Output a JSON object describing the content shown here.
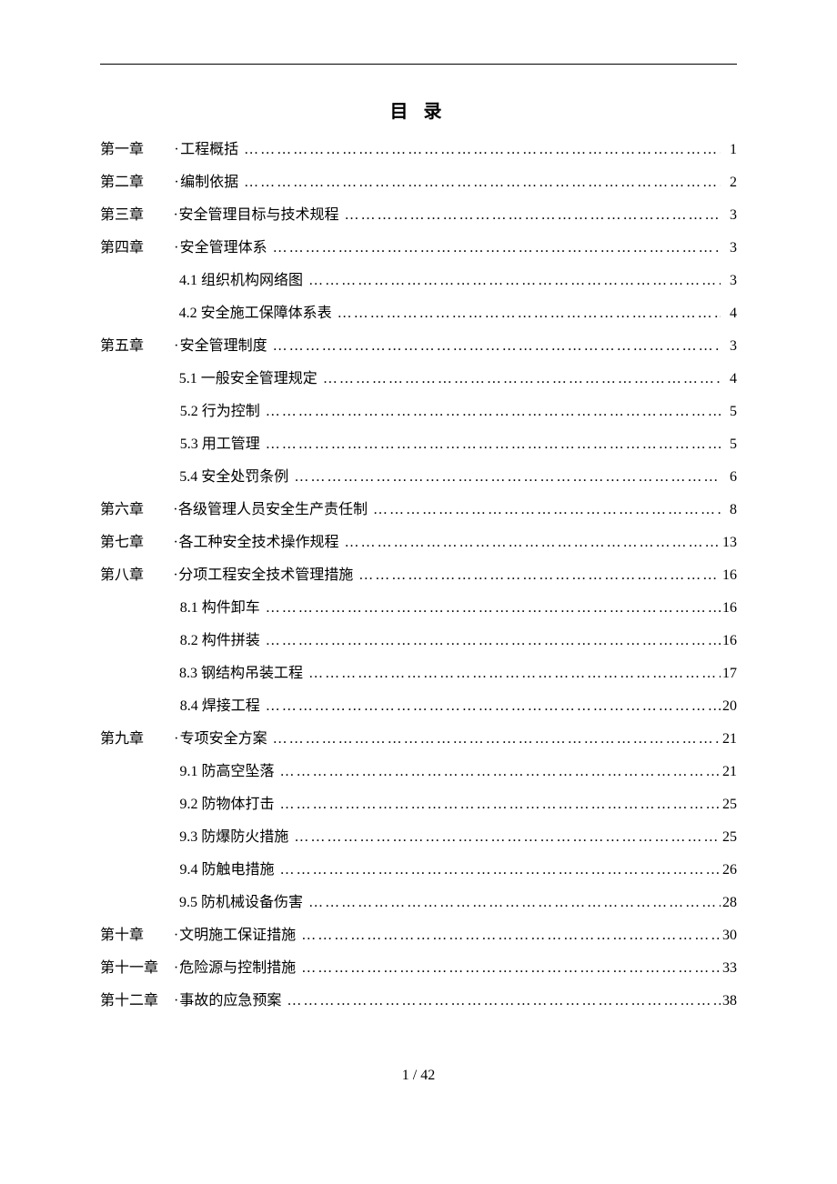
{
  "title": "目 录",
  "footer": "1 / 42",
  "entries": [
    {
      "chapter": "第一章",
      "label": "工程概括",
      "page": "1",
      "sub": false
    },
    {
      "chapter": "第二章",
      "label": "编制依据",
      "page": "2",
      "sub": false
    },
    {
      "chapter": "第三章",
      "label": "安全管理目标与技术规程",
      "page": "3",
      "sub": false
    },
    {
      "chapter": "第四章",
      "label": "安全管理体系",
      "page": "3",
      "sub": false
    },
    {
      "chapter": "",
      "label": "4.1 组织机构网络图",
      "page": "3",
      "sub": true
    },
    {
      "chapter": "",
      "label": "4.2 安全施工保障体系表",
      "page": "4",
      "sub": true
    },
    {
      "chapter": "第五章",
      "label": "安全管理制度",
      "page": "3",
      "sub": false
    },
    {
      "chapter": "",
      "label": "5.1 一般安全管理规定",
      "page": "4",
      "sub": true
    },
    {
      "chapter": "",
      "label": "5.2 行为控制",
      "page": "5",
      "sub": true
    },
    {
      "chapter": "",
      "label": "5.3 用工管理",
      "page": "5",
      "sub": true
    },
    {
      "chapter": "",
      "label": "5.4 安全处罚条例",
      "page": "6",
      "sub": true
    },
    {
      "chapter": "第六章",
      "label": "各级管理人员安全生产责任制",
      "page": "8",
      "sub": false
    },
    {
      "chapter": "第七章",
      "label": "各工种安全技术操作规程",
      "page": "13",
      "sub": false
    },
    {
      "chapter": "第八章",
      "label": "分项工程安全技术管理措施",
      "page": "16",
      "sub": false
    },
    {
      "chapter": "",
      "label": "8.1 构件卸车",
      "page": "16",
      "sub": true
    },
    {
      "chapter": "",
      "label": "8.2 构件拼装",
      "page": "16",
      "sub": true
    },
    {
      "chapter": "",
      "label": "8.3 钢结构吊装工程",
      "page": "17",
      "sub": true
    },
    {
      "chapter": "",
      "label": "8.4 焊接工程",
      "page": "20",
      "sub": true
    },
    {
      "chapter": "第九章",
      "label": "专项安全方案",
      "page": "21",
      "sub": false
    },
    {
      "chapter": "",
      "label": "9.1 防高空坠落",
      "page": "21",
      "sub": true
    },
    {
      "chapter": "",
      "label": "9.2 防物体打击",
      "page": "25",
      "sub": true
    },
    {
      "chapter": "",
      "label": "9.3 防爆防火措施",
      "page": "25",
      "sub": true
    },
    {
      "chapter": "",
      "label": "9.4 防触电措施",
      "page": "26",
      "sub": true
    },
    {
      "chapter": "",
      "label": "9.5 防机械设备伤害",
      "page": "28",
      "sub": true
    },
    {
      "chapter": "第十章",
      "label": "文明施工保证措施",
      "page": "30",
      "sub": false
    },
    {
      "chapter": "第十一章",
      "label": "危险源与控制措施",
      "page": "33",
      "sub": false
    },
    {
      "chapter": "第十二章",
      "label": "事故的应急预案",
      "page": "38",
      "sub": false
    }
  ]
}
